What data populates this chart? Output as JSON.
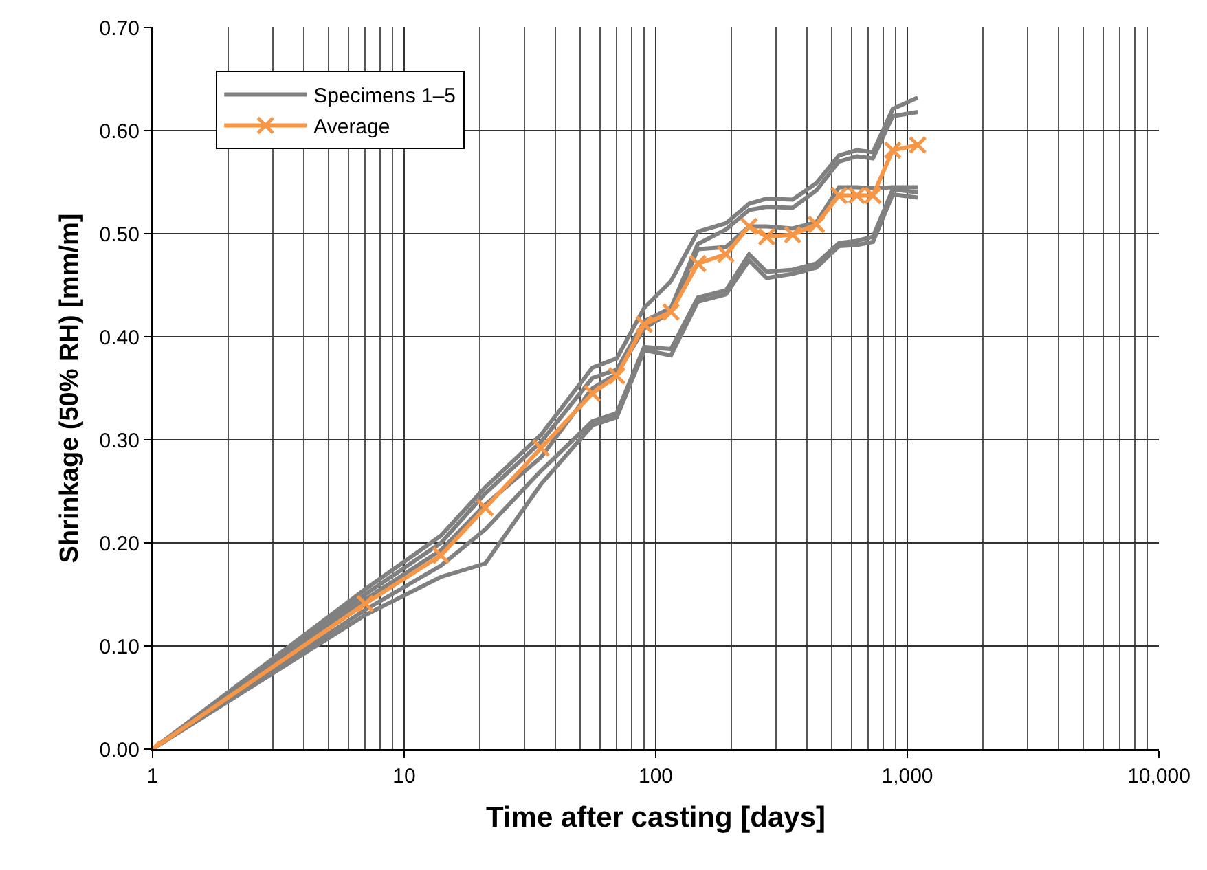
{
  "chart_data": {
    "type": "line",
    "xlabel": "Time after casting [days]",
    "ylabel": "Shrinkage (50% RH) [mm/m]",
    "x": [
      1,
      7,
      14,
      21,
      35,
      56,
      70,
      90,
      115,
      147,
      190,
      235,
      276,
      350,
      435,
      535,
      630,
      730,
      875,
      1100
    ],
    "series": [
      {
        "name": "Specimens 1–5",
        "color": "#808080",
        "marker": "none",
        "values": [
          0,
          0.155,
          0.207,
          0.254,
          0.305,
          0.37,
          0.379,
          0.428,
          0.454,
          0.502,
          0.51,
          0.529,
          0.534,
          0.533,
          0.549,
          0.576,
          0.581,
          0.579,
          0.621,
          0.632
        ]
      },
      {
        "color": "#808080",
        "marker": "none",
        "values": [
          0,
          0.15,
          0.2,
          0.248,
          0.298,
          0.36,
          0.368,
          0.415,
          0.428,
          0.49,
          0.504,
          0.523,
          0.526,
          0.525,
          0.542,
          0.57,
          0.575,
          0.573,
          0.614,
          0.618
        ]
      },
      {
        "color": "#808080",
        "marker": "none",
        "values": [
          0,
          0.145,
          0.193,
          0.237,
          0.283,
          0.35,
          0.364,
          0.408,
          0.424,
          0.485,
          0.487,
          0.507,
          0.507,
          0.505,
          0.511,
          0.545,
          0.545,
          0.544,
          0.545,
          0.545
        ]
      },
      {
        "color": "#808080",
        "marker": "none",
        "values": [
          0,
          0.135,
          0.178,
          0.213,
          0.27,
          0.318,
          0.326,
          0.39,
          0.388,
          0.438,
          0.445,
          0.48,
          0.463,
          0.465,
          0.471,
          0.491,
          0.493,
          0.497,
          0.543,
          0.54
        ]
      },
      {
        "color": "#808080",
        "marker": "none",
        "values": [
          0,
          0.13,
          0.167,
          0.18,
          0.257,
          0.314,
          0.322,
          0.387,
          0.382,
          0.434,
          0.441,
          0.474,
          0.457,
          0.461,
          0.467,
          0.488,
          0.489,
          0.492,
          0.538,
          0.535
        ]
      },
      {
        "name": "Average",
        "color": "#f79646",
        "marker": "cross",
        "values": [
          0,
          0.141,
          0.188,
          0.234,
          0.292,
          0.345,
          0.362,
          0.412,
          0.424,
          0.471,
          0.48,
          0.507,
          0.497,
          0.499,
          0.509,
          0.537,
          0.537,
          0.537,
          0.581,
          0.586
        ]
      }
    ],
    "log": "x",
    "xlim": [
      1,
      10000
    ],
    "xticks": [
      1,
      10,
      100,
      {
        "value": 1000,
        "label": "1,000"
      },
      {
        "value": 10000,
        "label": "10,000"
      }
    ],
    "ylim": [
      0,
      0.7
    ],
    "yticks": [
      {
        "value": 0,
        "label": "0.00"
      },
      {
        "value": 0.1,
        "label": "0.10"
      },
      {
        "value": 0.2,
        "label": "0.20"
      },
      {
        "value": 0.3,
        "label": "0.30"
      },
      {
        "value": 0.4,
        "label": "0.40"
      },
      {
        "value": 0.5,
        "label": "0.50"
      },
      {
        "value": 0.6,
        "label": "0.60"
      },
      {
        "value": 0.7,
        "label": "0.70"
      }
    ],
    "grid": true,
    "legend": "top left"
  }
}
